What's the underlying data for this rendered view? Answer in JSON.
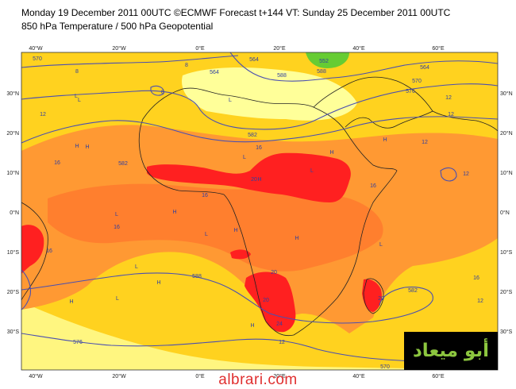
{
  "header": {
    "line1": "Monday 19 December 2011 00UTC ©ECMWF Forecast t+144 VT: Sunday 25 December 2011 00UTC",
    "line2": "850 hPa Temperature / 500 hPa Geopotential"
  },
  "axes": {
    "lon_labels": [
      "40°W",
      "20°W",
      "0°E",
      "20°E",
      "40°E",
      "60°E"
    ],
    "lat_labels": [
      "30°N",
      "20°N",
      "10°N",
      "0°N",
      "10°S",
      "20°S",
      "30°S"
    ]
  },
  "colors": {
    "yellow_pale": "#ffff99",
    "yellow": "#ffd21f",
    "orange": "#ff9933",
    "orange_red": "#ff6a2a",
    "red": "#ff2020",
    "green": "#66cc33",
    "contour": "#4a4fb0",
    "coast": "#222222"
  },
  "contour_labels": [
    {
      "text": "570"
    },
    {
      "text": "564"
    },
    {
      "text": "570"
    },
    {
      "text": "582"
    },
    {
      "text": "576"
    },
    {
      "text": "588"
    },
    {
      "text": "582"
    },
    {
      "text": "588"
    },
    {
      "text": "582"
    },
    {
      "text": "576"
    },
    {
      "text": "570"
    },
    {
      "text": "588"
    },
    {
      "text": "552"
    },
    {
      "text": "564"
    },
    {
      "text": "564"
    }
  ],
  "temp_labels": [
    {
      "text": "8"
    },
    {
      "text": "8"
    },
    {
      "text": "12"
    },
    {
      "text": "16"
    },
    {
      "text": "12"
    },
    {
      "text": "16"
    },
    {
      "text": "20"
    },
    {
      "text": "16"
    },
    {
      "text": "20"
    },
    {
      "text": "16"
    },
    {
      "text": "20"
    },
    {
      "text": "24"
    },
    {
      "text": "20"
    },
    {
      "text": "16"
    },
    {
      "text": "12"
    },
    {
      "text": "12"
    },
    {
      "text": "16"
    },
    {
      "text": "12"
    },
    {
      "text": "8"
    },
    {
      "text": "12"
    },
    {
      "text": "16"
    },
    {
      "text": "12"
    }
  ],
  "pressure_marks": {
    "h": "H",
    "l": "L"
  },
  "watermark": {
    "arabic": "أبو ميعاد",
    "site": "albrari.com"
  }
}
